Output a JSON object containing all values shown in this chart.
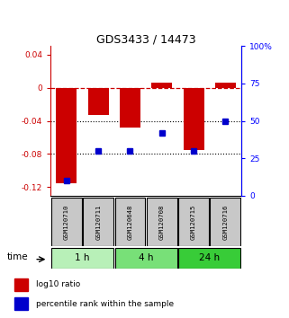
{
  "title": "GDS3433 / 14473",
  "samples": [
    "GSM120710",
    "GSM120711",
    "GSM120648",
    "GSM120708",
    "GSM120715",
    "GSM120716"
  ],
  "log10_ratio": [
    -0.115,
    -0.033,
    -0.048,
    0.006,
    -0.075,
    0.006
  ],
  "percentile_rank": [
    10,
    30,
    30,
    42,
    30,
    50
  ],
  "groups": [
    {
      "label": "1 h",
      "samples": [
        0,
        1
      ],
      "color": "#b8f0b8"
    },
    {
      "label": "4 h",
      "samples": [
        2,
        3
      ],
      "color": "#78e078"
    },
    {
      "label": "24 h",
      "samples": [
        4,
        5
      ],
      "color": "#38cc38"
    }
  ],
  "ylim_left": [
    -0.13,
    0.05
  ],
  "ylim_right": [
    0,
    100
  ],
  "yticks_left": [
    0.04,
    0.0,
    -0.04,
    -0.08,
    -0.12
  ],
  "yticks_right": [
    100,
    75,
    50,
    25,
    0
  ],
  "bar_color_red": "#cc0000",
  "bar_color_blue": "#0000cc",
  "bg_color": "#ffffff",
  "plot_bg": "#ffffff",
  "label_gray": "#c8c8c8",
  "time_label": "time",
  "legend_red": "log10 ratio",
  "legend_blue": "percentile rank within the sample"
}
